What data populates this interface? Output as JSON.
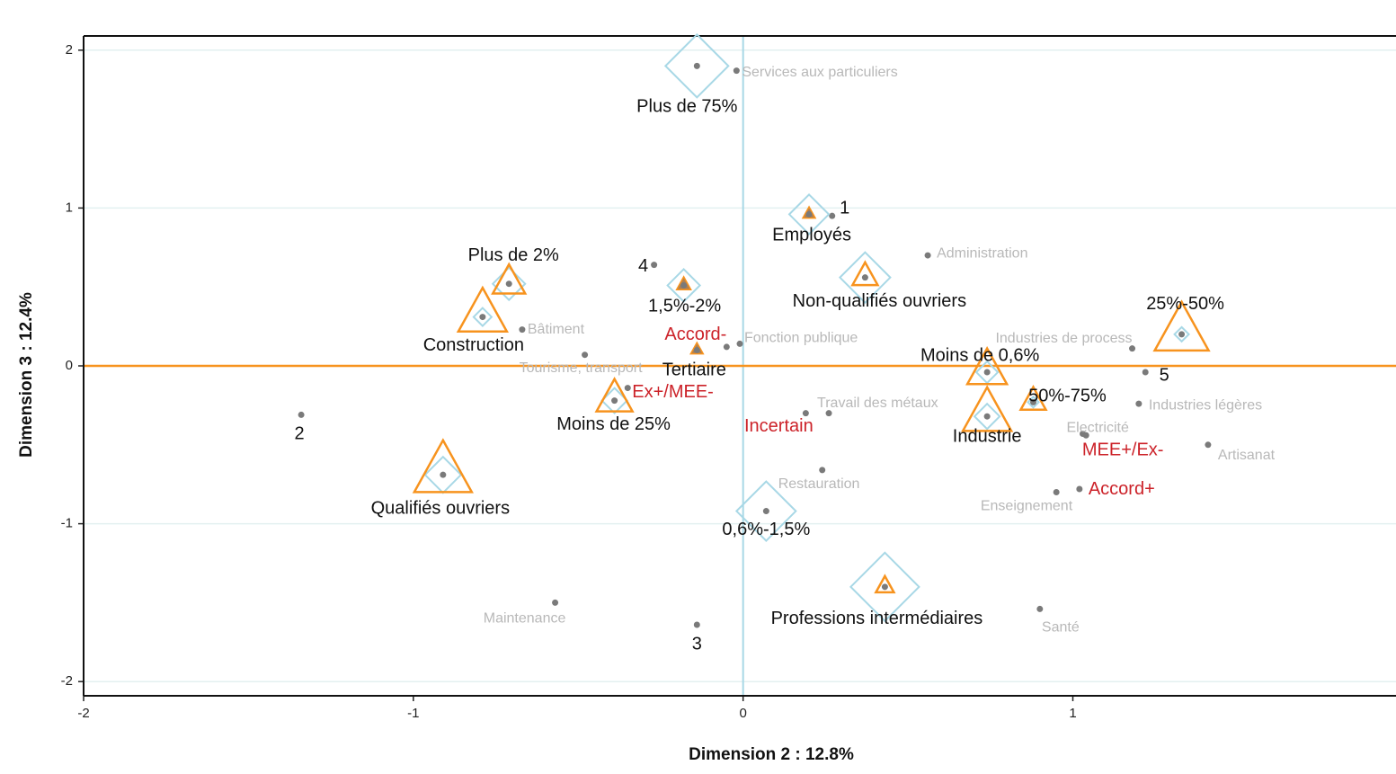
{
  "chart_data": {
    "type": "scatter",
    "x_label": "Dimension 2 : 12.8%",
    "y_label": "Dimension 3 : 12.4%",
    "xlim": [
      -2,
      1.98
    ],
    "ylim": [
      -2.09,
      2.09
    ],
    "xticks": [
      -2,
      -1,
      0,
      1
    ],
    "yticks": [
      -2,
      -1,
      0,
      1,
      2
    ],
    "grid": true,
    "x_zero_line_color": "#a8d8e6",
    "y_zero_line_color": "#f7931e",
    "dot_color": "#7a7a7a",
    "groups": [
      {
        "label_color": "#b8b8b8",
        "labels": [
          "Services aux particuliers",
          "Administration",
          "Bâtiment",
          "Fonction publique",
          "Tourisme, transport",
          "Industries de process",
          "Travail des métaux",
          "Industries légères",
          "Electricité",
          "Artisanat",
          "Restauration",
          "Enseignement",
          "Maintenance",
          "Santé"
        ],
        "x": [
          -0.02,
          0.56,
          -0.67,
          -0.01,
          -0.48,
          1.18,
          0.26,
          1.2,
          1.03,
          1.41,
          0.24,
          0.95,
          -0.57,
          0.9
        ],
        "y": [
          1.87,
          0.7,
          0.23,
          0.14,
          0.07,
          0.11,
          -0.3,
          -0.24,
          -0.43,
          -0.5,
          -0.66,
          -0.8,
          -1.5,
          -1.54
        ]
      },
      {
        "label_color": "#cc2229",
        "labels": [
          "Accord-",
          "Ex+/MEE-",
          "Incertain",
          "MEE+/Ex-",
          "Accord+"
        ],
        "x": [
          -0.05,
          -0.35,
          0.19,
          1.04,
          1.02
        ],
        "y": [
          0.12,
          -0.14,
          -0.3,
          -0.44,
          -0.78
        ]
      },
      {
        "label_color": "#111111",
        "labels": [
          "1",
          "2",
          "3",
          "4",
          "5"
        ],
        "x": [
          0.27,
          -1.34,
          -0.14,
          -0.27,
          1.22
        ],
        "y": [
          0.95,
          -0.31,
          -1.64,
          0.64,
          -0.04
        ]
      },
      {
        "label_color": "#111111",
        "diamond_color": "#a8d8e6",
        "triangle_color": "#f7931e",
        "labels": [
          "Plus de 75%",
          "Employés",
          "Plus de 2%",
          "Construction",
          "1,5%-2%",
          "Non-qualifiés ouvriers",
          "25%-50%",
          "Tertiaire",
          "Moins de 0,6%",
          "Moins de 25%",
          "50%-75%",
          "Industrie",
          "Qualifiés ouvriers",
          "0,6%-1,5%",
          "Professions intermédiaires"
        ],
        "x": [
          -0.14,
          0.2,
          -0.71,
          -0.79,
          -0.18,
          0.37,
          1.33,
          -0.14,
          0.74,
          -0.39,
          0.88,
          0.74,
          -0.91,
          0.07,
          0.43
        ],
        "y": [
          1.9,
          0.96,
          0.52,
          0.31,
          0.51,
          0.56,
          0.2,
          0.1,
          -0.04,
          -0.22,
          -0.23,
          -0.32,
          -0.69,
          -0.92,
          -1.4
        ],
        "diamond_sizes": [
          35,
          22,
          18,
          10,
          18,
          28,
          8,
          null,
          12,
          14,
          6,
          14,
          20,
          33,
          38
        ],
        "triangle_sizes": [
          null,
          7,
          18,
          27,
          8,
          14,
          30,
          7,
          22,
          20,
          14,
          27,
          32,
          null,
          10
        ]
      }
    ]
  }
}
